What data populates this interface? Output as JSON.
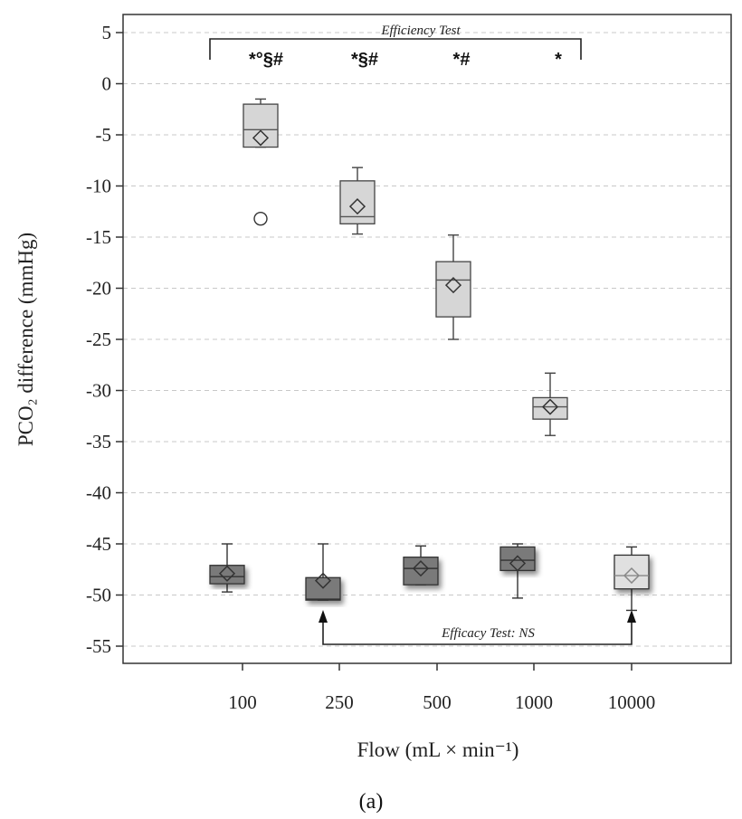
{
  "chart_data": {
    "type": "box",
    "categories": [
      "100",
      "250",
      "500",
      "1000",
      "10000"
    ],
    "xlabel": "Flow (mL × min⁻¹)",
    "ylabel": "PCO₂ difference (mmHg)",
    "ylim": [
      -56.5,
      7
    ],
    "yticks": [
      5,
      0,
      -5,
      -10,
      -15,
      -20,
      -25,
      -30,
      -35,
      -40,
      -45,
      -50,
      -55
    ],
    "grid": "horizontal dashed",
    "panel_label": "(a)",
    "efficiency_test": {
      "label": "Efficiency Test",
      "marks": [
        "*°§#",
        "*§#",
        "*#",
        "*"
      ],
      "colors": {
        "box": "#d6d6d6",
        "edge": "#444444"
      },
      "boxes": [
        {
          "category": "100",
          "q1": -6.2,
          "median": -4.5,
          "q3": -2.0,
          "whisker_low": -6.2,
          "whisker_high": -1.5,
          "mean": -5.3,
          "outliers": [
            -13.2
          ]
        },
        {
          "category": "250",
          "q1": -13.7,
          "median": -13.0,
          "q3": -9.5,
          "whisker_low": -14.7,
          "whisker_high": -8.2,
          "mean": -12.0,
          "outliers": []
        },
        {
          "category": "500",
          "q1": -22.8,
          "median": -19.2,
          "q3": -17.4,
          "whisker_low": -25.0,
          "whisker_high": -14.8,
          "mean": -19.7,
          "outliers": []
        },
        {
          "category": "1000",
          "q1": -32.8,
          "median": -31.6,
          "q3": -30.7,
          "whisker_low": -34.4,
          "whisker_high": -28.3,
          "mean": -31.6,
          "outliers": []
        }
      ]
    },
    "efficacy_test": {
      "label": "Efficacy Test: NS",
      "colors": {
        "box": "#7a7a7a",
        "last_box": "#e0e0e0",
        "edge": "#333333"
      },
      "boxes": [
        {
          "category": "100",
          "q1": -48.9,
          "median": -48.2,
          "q3": -47.1,
          "whisker_low": -49.7,
          "whisker_high": -45.0,
          "mean": -47.9,
          "outliers": []
        },
        {
          "category": "250",
          "q1": -50.5,
          "median": -50.4,
          "q3": -48.3,
          "whisker_low": -50.5,
          "whisker_high": -45.0,
          "mean": -48.6,
          "outliers": []
        },
        {
          "category": "500",
          "q1": -49.0,
          "median": -47.4,
          "q3": -46.3,
          "whisker_low": -49.0,
          "whisker_high": -45.2,
          "mean": -47.4,
          "outliers": []
        },
        {
          "category": "1000",
          "q1": -47.6,
          "median": -46.6,
          "q3": -45.3,
          "whisker_low": -50.3,
          "whisker_high": -45.0,
          "mean": -46.9,
          "outliers": []
        },
        {
          "category": "10000",
          "q1": -49.4,
          "median": -48.1,
          "q3": -46.1,
          "whisker_low": -51.5,
          "whisker_high": -45.3,
          "mean": -48.1,
          "outliers": []
        }
      ]
    }
  }
}
